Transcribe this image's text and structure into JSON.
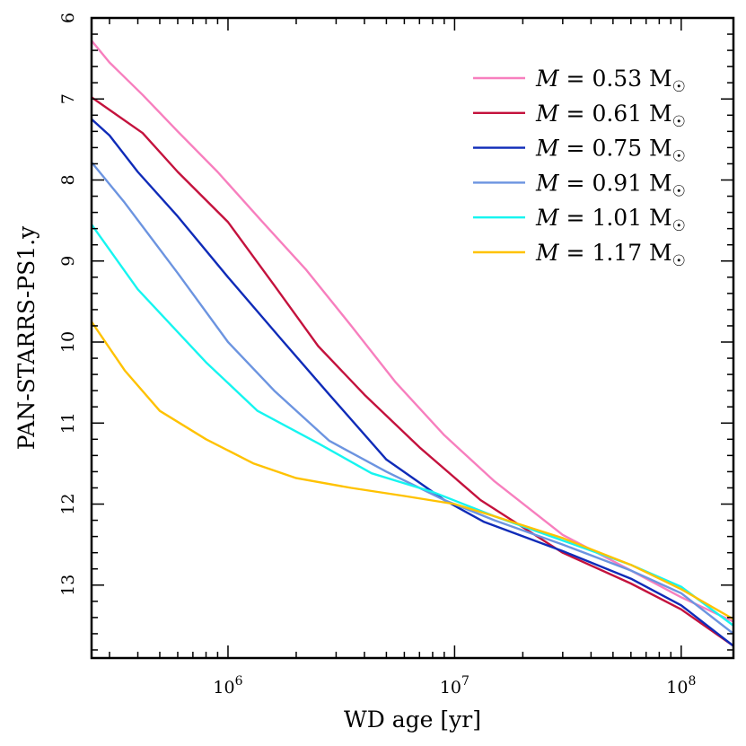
{
  "chart_data": {
    "type": "line",
    "title": "",
    "xlabel": "WD age [yr]",
    "ylabel": "PAN-STARRS-PS1.y",
    "x_scale": "log",
    "xlim": [
      250000,
      170000000
    ],
    "ylim": [
      13.9,
      6
    ],
    "y_inverted": true,
    "x_ticks": [
      {
        "value": 1000000,
        "base": "10",
        "exp": "6"
      },
      {
        "value": 10000000,
        "base": "10",
        "exp": "7"
      },
      {
        "value": 100000000,
        "base": "10",
        "exp": "8"
      }
    ],
    "y_ticks": [
      6,
      7,
      8,
      9,
      10,
      11,
      12,
      13
    ],
    "legend_position": "top-right",
    "series": [
      {
        "name": "M = 0.53 M☉",
        "var": "M",
        "eq": " = 0.53 M",
        "sym": "☉",
        "color": "#f77fbe",
        "x": [
          250000,
          300000,
          420000,
          600000,
          900000,
          1400000,
          2200000,
          3500000,
          5500000,
          9000000,
          15000000,
          30000000,
          60000000,
          100000000,
          170000000
        ],
        "y": [
          6.28,
          6.55,
          6.95,
          7.4,
          7.9,
          8.5,
          9.1,
          9.8,
          10.5,
          11.15,
          11.72,
          12.38,
          12.82,
          13.15,
          13.45
        ]
      },
      {
        "name": "M = 0.61 M☉",
        "var": "M",
        "eq": " = 0.61 M",
        "sym": "☉",
        "color": "#c4123d",
        "x": [
          250000,
          420000,
          600000,
          1000000,
          1600000,
          2500000,
          4000000,
          7000000,
          13000000,
          30000000,
          60000000,
          100000000,
          170000000
        ],
        "y": [
          6.98,
          7.42,
          7.9,
          8.52,
          9.3,
          10.05,
          10.65,
          11.3,
          11.95,
          12.6,
          12.98,
          13.3,
          13.75
        ]
      },
      {
        "name": "M = 0.75 M☉",
        "var": "M",
        "eq": " = 0.75 M",
        "sym": "☉",
        "color": "#0f2bb8",
        "x": [
          250000,
          300000,
          400000,
          600000,
          1000000,
          1700000,
          2800000,
          5000000,
          9000000,
          13500000,
          30000000,
          60000000,
          100000000,
          170000000
        ],
        "y": [
          7.25,
          7.45,
          7.9,
          8.45,
          9.2,
          9.95,
          10.65,
          11.45,
          11.95,
          12.22,
          12.58,
          12.92,
          13.25,
          13.75
        ]
      },
      {
        "name": "M = 0.91 M☉",
        "var": "M",
        "eq": " = 0.91 M",
        "sym": "☉",
        "color": "#6c94e0",
        "x": [
          250000,
          350000,
          600000,
          1000000,
          1600000,
          2800000,
          5000000,
          9000000,
          15000000,
          30000000,
          60000000,
          100000000,
          170000000
        ],
        "y": [
          7.78,
          8.28,
          9.15,
          10.0,
          10.6,
          11.22,
          11.6,
          11.95,
          12.2,
          12.5,
          12.82,
          13.1,
          13.6
        ]
      },
      {
        "name": "M = 1.01 M☉",
        "var": "M",
        "eq": " = 1.01 M",
        "sym": "☉",
        "color": "#16f5f0",
        "x": [
          250000,
          400000,
          800000,
          1350000,
          2500000,
          4300000,
          8000000,
          15000000,
          30000000,
          60000000,
          100000000,
          170000000
        ],
        "y": [
          8.55,
          9.35,
          10.25,
          10.85,
          11.25,
          11.62,
          11.85,
          12.15,
          12.45,
          12.75,
          13.02,
          13.5
        ]
      },
      {
        "name": "M = 1.17 M☉",
        "var": "M",
        "eq": " = 1.17 M",
        "sym": "☉",
        "color": "#ffc200",
        "x": [
          250000,
          350000,
          500000,
          800000,
          1300000,
          2000000,
          3500000,
          6000000,
          10000000,
          15000000,
          30000000,
          60000000,
          100000000,
          170000000
        ],
        "y": [
          9.75,
          10.35,
          10.85,
          11.2,
          11.5,
          11.68,
          11.8,
          11.9,
          12.0,
          12.15,
          12.42,
          12.75,
          13.05,
          13.42
        ]
      }
    ]
  }
}
